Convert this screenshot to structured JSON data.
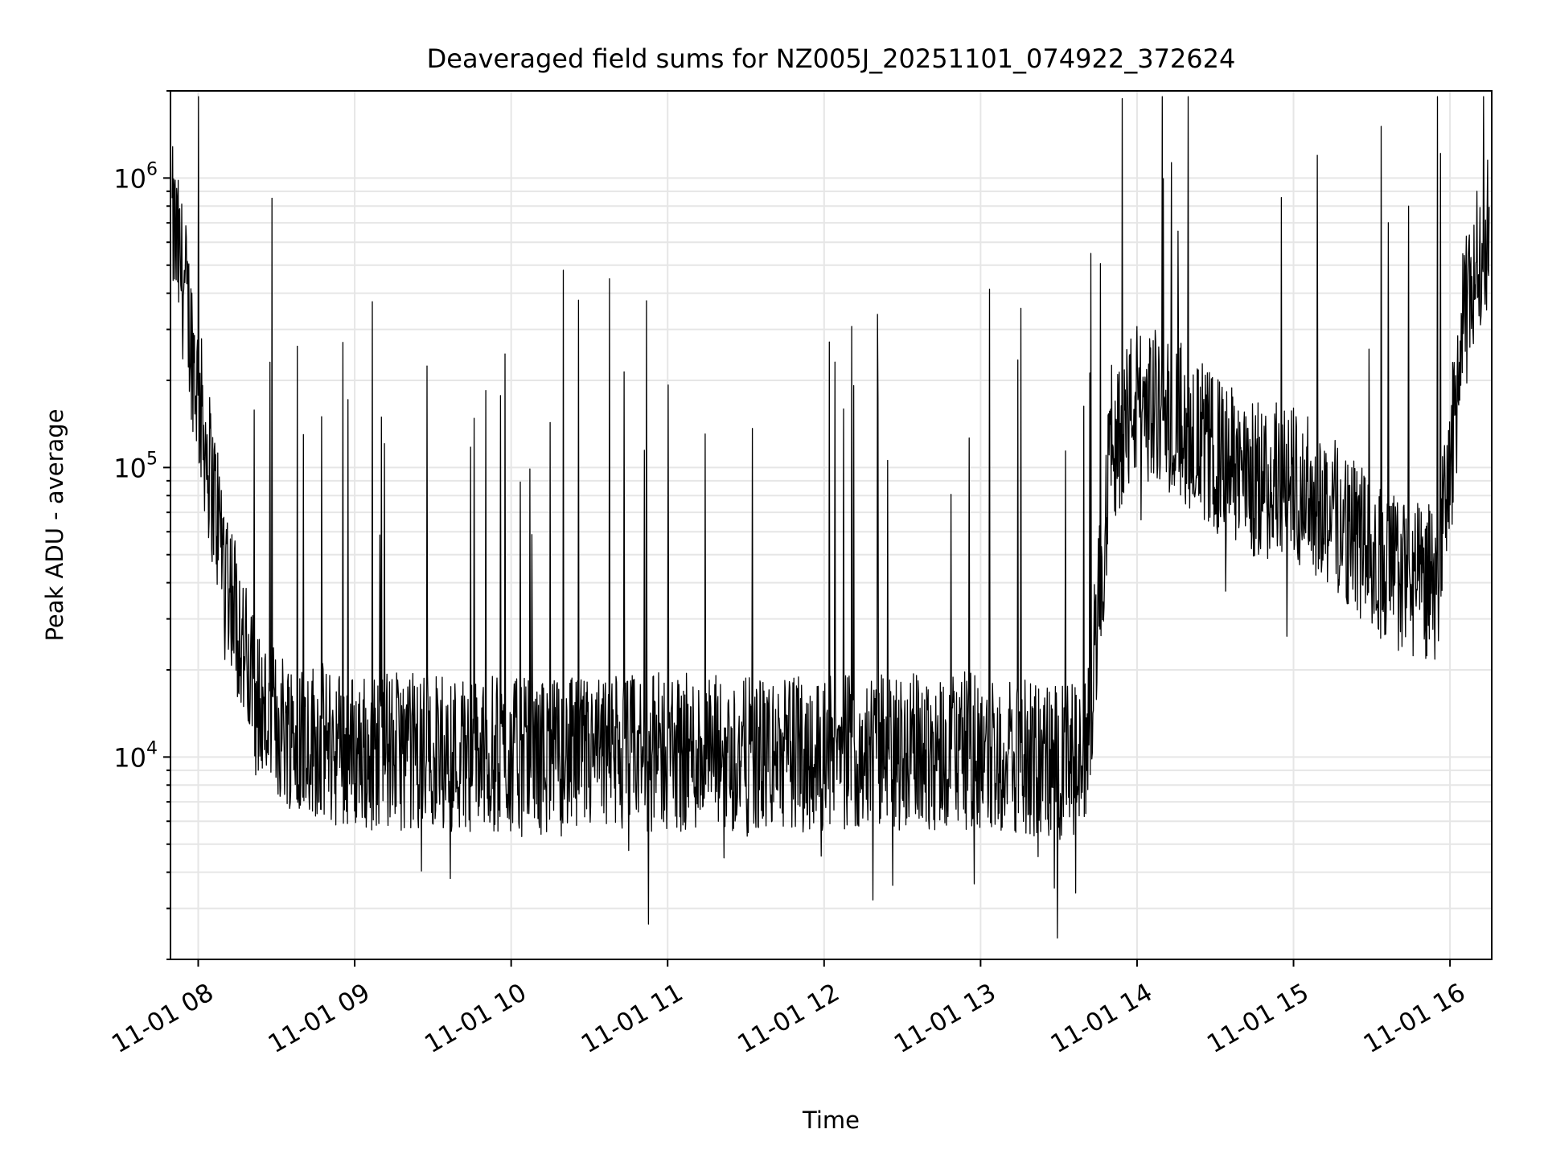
{
  "chart_data": {
    "type": "line",
    "title": "Deaveraged field sums for NZ005J_20251101_074922_372624",
    "xlabel": "Time",
    "ylabel": "Peak ADU - average",
    "yscale": "log",
    "ylim": [
      2000,
      2000000
    ],
    "xlim": [
      "2025-11-01 07:49:22",
      "2025-11-01 16:16:00"
    ],
    "grid": true,
    "line_color": "#000000",
    "grid_color": "#e6e6e6",
    "x_ticks": [
      {
        "value": "2025-11-01 08:00",
        "label": "11-01 08"
      },
      {
        "value": "2025-11-01 09:00",
        "label": "11-01 09"
      },
      {
        "value": "2025-11-01 10:00",
        "label": "11-01 10"
      },
      {
        "value": "2025-11-01 11:00",
        "label": "11-01 11"
      },
      {
        "value": "2025-11-01 12:00",
        "label": "11-01 12"
      },
      {
        "value": "2025-11-01 13:00",
        "label": "11-01 13"
      },
      {
        "value": "2025-11-01 14:00",
        "label": "11-01 14"
      },
      {
        "value": "2025-11-01 15:00",
        "label": "11-01 15"
      },
      {
        "value": "2025-11-01 16:00",
        "label": "11-01 16"
      }
    ],
    "y_ticks": [
      {
        "value": 10000,
        "base": "10",
        "exp": "4"
      },
      {
        "value": 100000,
        "base": "10",
        "exp": "5"
      },
      {
        "value": 1000000,
        "base": "10",
        "exp": "6"
      }
    ],
    "series": [
      {
        "x": [
          "2025-11-01 07:50",
          "2025-11-01 07:55",
          "2025-11-01 08:00",
          "2025-11-01 08:05",
          "2025-11-01 08:10",
          "2025-11-01 08:15",
          "2025-11-01 08:20",
          "2025-11-01 08:25",
          "2025-11-01 08:30",
          "2025-11-01 08:40",
          "2025-11-01 08:50",
          "2025-11-01 09:00",
          "2025-11-01 09:30",
          "2025-11-01 10:00",
          "2025-11-01 10:30",
          "2025-11-01 11:00",
          "2025-11-01 11:30",
          "2025-11-01 12:00",
          "2025-11-01 12:30",
          "2025-11-01 13:00",
          "2025-11-01 13:30",
          "2025-11-01 13:40",
          "2025-11-01 13:45",
          "2025-11-01 13:50",
          "2025-11-01 14:00",
          "2025-11-01 14:15",
          "2025-11-01 14:30",
          "2025-11-01 14:45",
          "2025-11-01 15:00",
          "2025-11-01 15:15",
          "2025-11-01 15:30",
          "2025-11-01 15:45",
          "2025-11-01 15:55",
          "2025-11-01 16:00",
          "2025-11-01 16:05",
          "2025-11-01 16:10",
          "2025-11-01 16:15"
        ],
        "y": [
          700000,
          400000,
          180000,
          90000,
          50000,
          30000,
          18000,
          14000,
          13000,
          12000,
          11000,
          10500,
          10500,
          10000,
          10000,
          10500,
          10000,
          10500,
          10500,
          10500,
          9500,
          9500,
          30000,
          120000,
          170000,
          150000,
          110000,
          90000,
          90000,
          70000,
          50000,
          40000,
          40000,
          100000,
          300000,
          500000,
          700000
        ]
      }
    ]
  }
}
